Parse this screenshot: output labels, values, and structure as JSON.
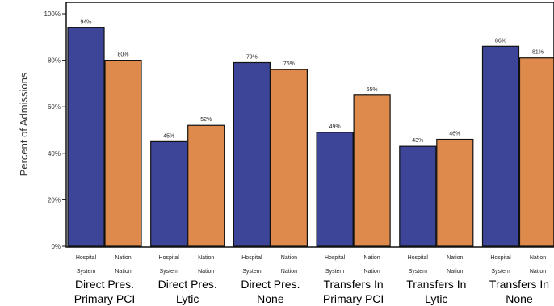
{
  "chart_data": {
    "type": "bar",
    "ylabel": "Percent of Admissions",
    "ylim": [
      0,
      100
    ],
    "yticks": [
      {
        "value": 0,
        "label": "0%"
      },
      {
        "value": 20,
        "label": "20%"
      },
      {
        "value": 40,
        "label": "40%"
      },
      {
        "value": 60,
        "label": "60%"
      },
      {
        "value": 80,
        "label": "80%"
      },
      {
        "value": 100,
        "label": "100%"
      }
    ],
    "groups": [
      {
        "line1": "Direct Pres.",
        "line2": "Primary PCI"
      },
      {
        "line1": "Direct Pres.",
        "line2": "Lytic"
      },
      {
        "line1": "Direct Pres.",
        "line2": "None"
      },
      {
        "line1": "Transfers In",
        "line2": "Primary PCI"
      },
      {
        "line1": "Transfers In",
        "line2": "Lytic"
      },
      {
        "line1": "Transfers In",
        "line2": "None"
      }
    ],
    "series": [
      {
        "name": "Hospital System",
        "tick_line1": "Hospital",
        "tick_line2": "System",
        "color": "#3c4598",
        "values": [
          94,
          45,
          79,
          49,
          43,
          86
        ],
        "labels": [
          "94%",
          "45%",
          "79%",
          "49%",
          "43%",
          "86%"
        ]
      },
      {
        "name": "Nation",
        "tick_line1": "Nation",
        "tick_line2": "Nation",
        "color": "#df8a4d",
        "values": [
          80,
          52,
          76,
          65,
          46,
          81
        ],
        "labels": [
          "80%",
          "52%",
          "76%",
          "65%",
          "46%",
          "81%"
        ]
      }
    ],
    "grid": false,
    "legend": "none"
  }
}
